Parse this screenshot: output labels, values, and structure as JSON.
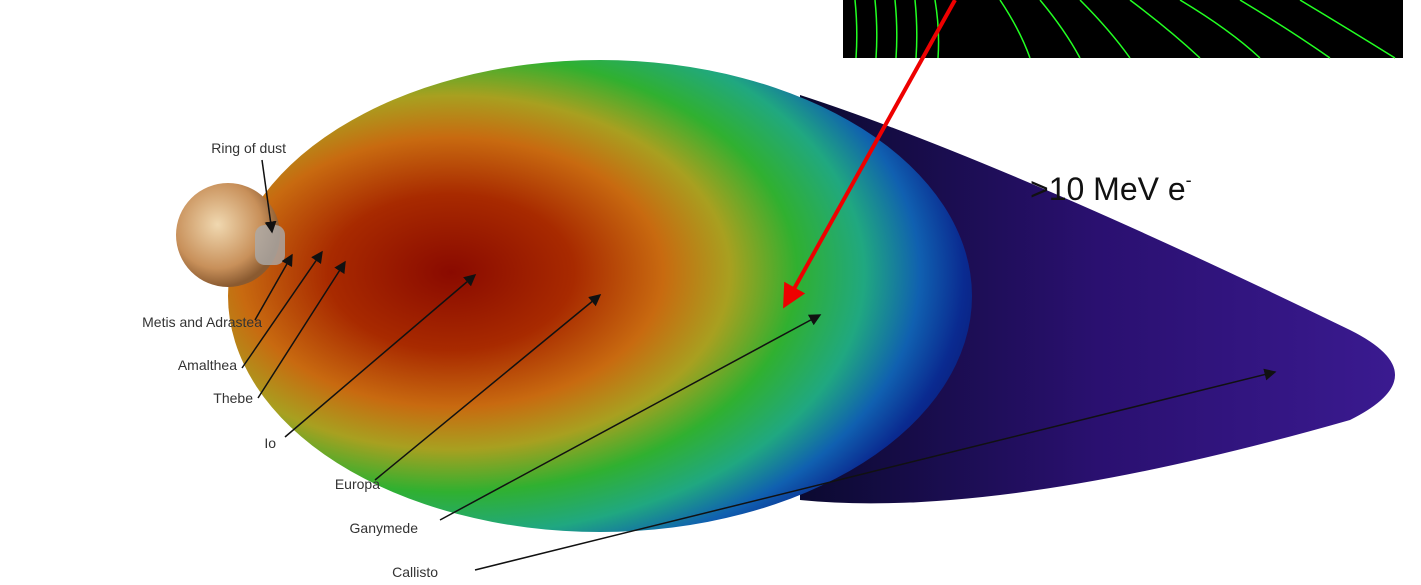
{
  "labels": {
    "ring_of_dust": "Ring of dust",
    "metis_and_adrastea": "Metis and Adrastea",
    "amalthea": "Amalthea",
    "thebe": "Thebe",
    "io": "Io",
    "europa": "Europa",
    "ganymede": "Ganymede",
    "callisto": "Callisto"
  },
  "annotation": {
    "label": ">10 MeV e",
    "superscript": "-"
  }
}
